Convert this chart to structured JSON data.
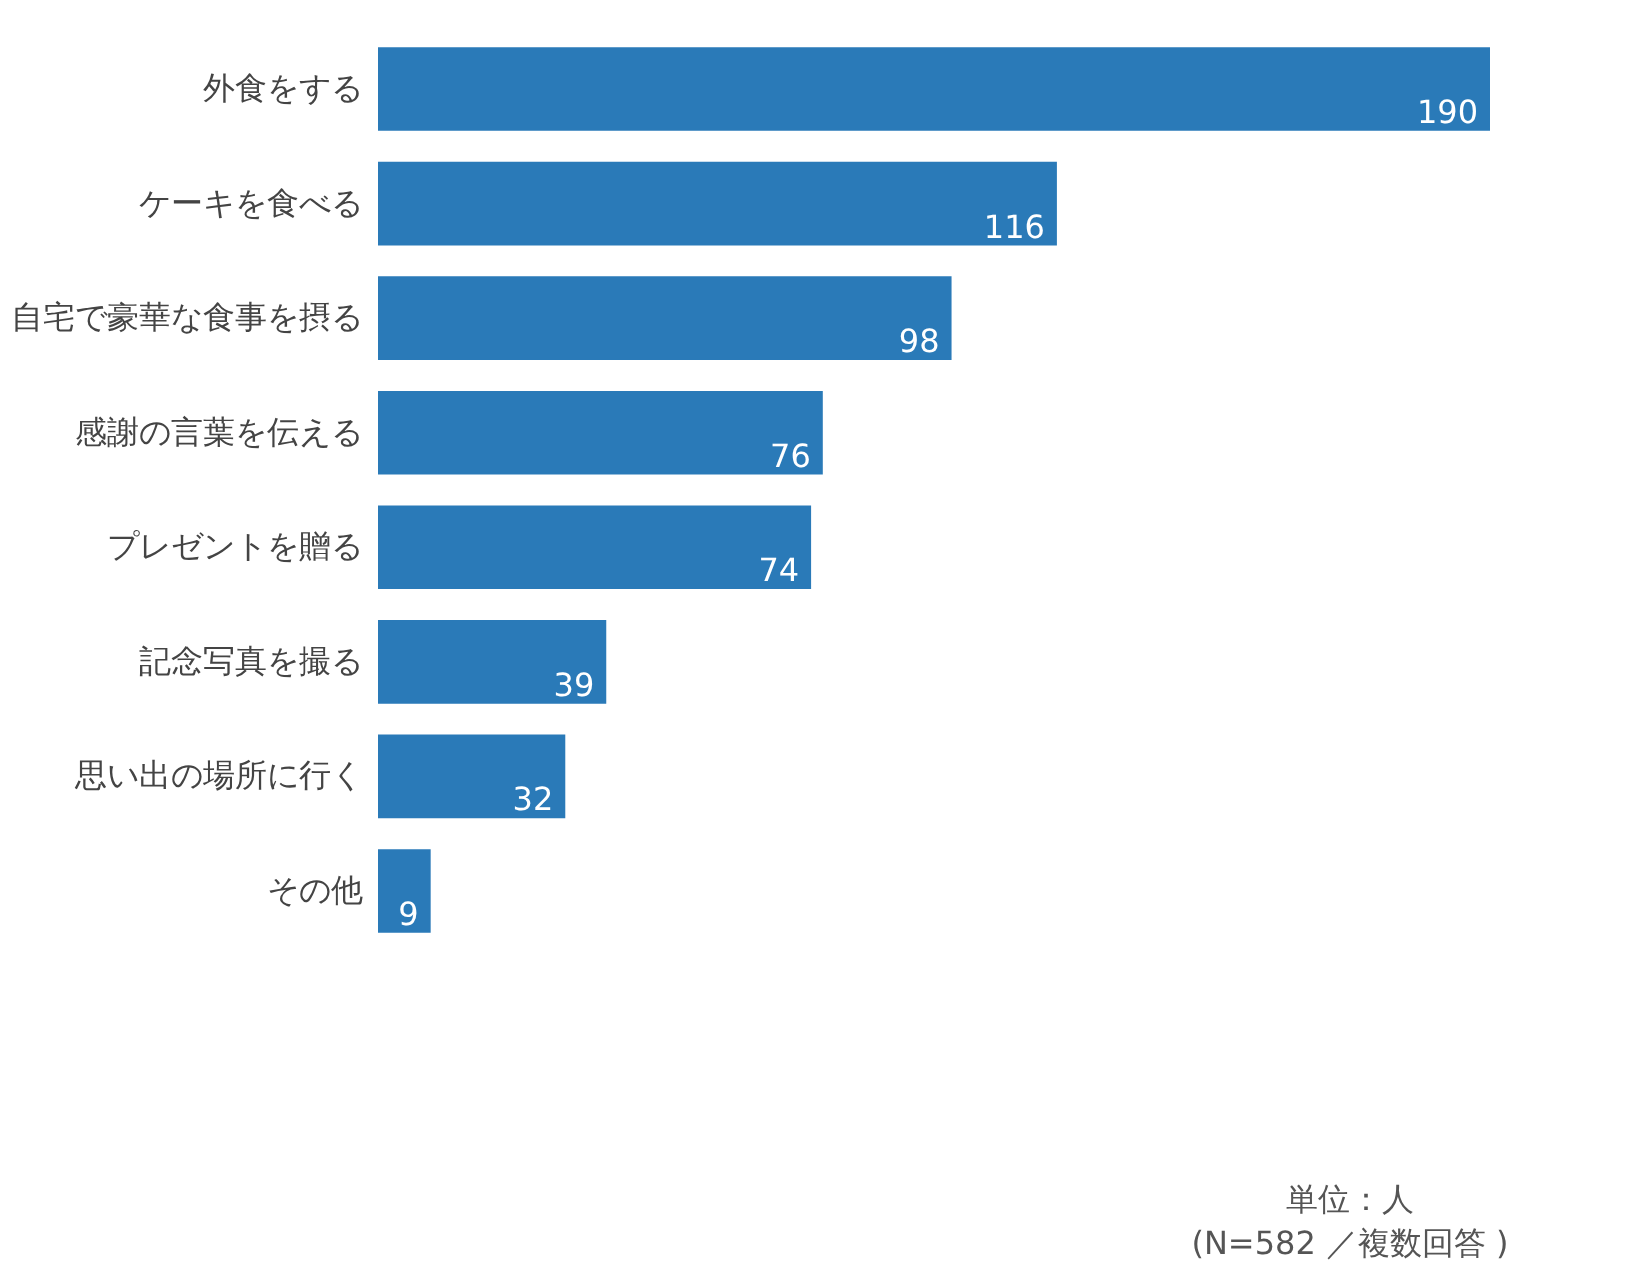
{
  "chart_data": {
    "type": "bar",
    "orientation": "horizontal",
    "categories": [
      "外食をする",
      "ケーキを食べる",
      "自宅で豪華な食事を摂る",
      "感謝の言葉を伝える",
      "プレゼントを贈る",
      "記念写真を撮る",
      "思い出の場所に行く",
      "その他"
    ],
    "values": [
      190,
      116,
      98,
      76,
      74,
      39,
      32,
      9
    ],
    "color": "#2a7ab8",
    "data_labels": true,
    "annotations": [
      "単位：人",
      "(N=582 ／複数回答 )"
    ]
  }
}
